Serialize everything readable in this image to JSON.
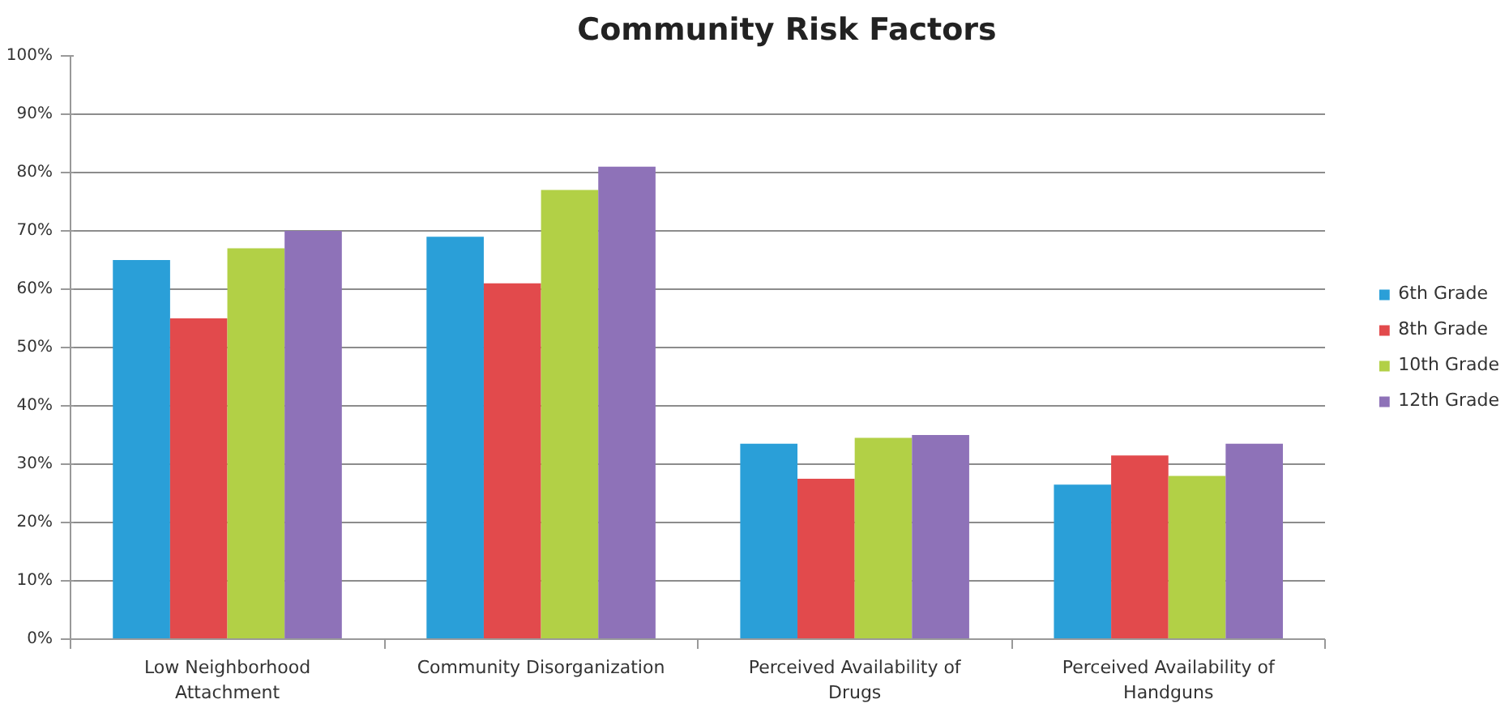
{
  "chart_data": {
    "type": "bar",
    "title": "Community Risk Factors",
    "categories": [
      "Low Neighborhood Attachment",
      "Community Disorganization",
      "Perceived Availability of Drugs",
      "Perceived Availability of Handguns"
    ],
    "series": [
      {
        "name": "6th Grade",
        "color": "#2a9fd8",
        "values": [
          65,
          69,
          33.5,
          26.5
        ]
      },
      {
        "name": "8th Grade",
        "color": "#e24a4c",
        "values": [
          55,
          61,
          27.5,
          31.5
        ]
      },
      {
        "name": "10th Grade",
        "color": "#b2d046",
        "values": [
          67,
          77,
          34.5,
          28
        ]
      },
      {
        "name": "12th Grade",
        "color": "#8e72b8",
        "values": [
          70,
          81,
          35,
          33.5
        ]
      }
    ],
    "ylim": [
      0,
      100
    ],
    "yticks": [
      {
        "value": 0,
        "label": "0%"
      },
      {
        "value": 10,
        "label": "10%"
      },
      {
        "value": 20,
        "label": "20%"
      },
      {
        "value": 30,
        "label": "30%"
      },
      {
        "value": 40,
        "label": "40%"
      },
      {
        "value": 50,
        "label": "50%"
      },
      {
        "value": 60,
        "label": "60%"
      },
      {
        "value": 70,
        "label": "70%"
      },
      {
        "value": 80,
        "label": "80%"
      },
      {
        "value": 90,
        "label": "90%"
      },
      {
        "value": 100,
        "label": "100%"
      }
    ],
    "grid": "y",
    "legend": "right"
  }
}
